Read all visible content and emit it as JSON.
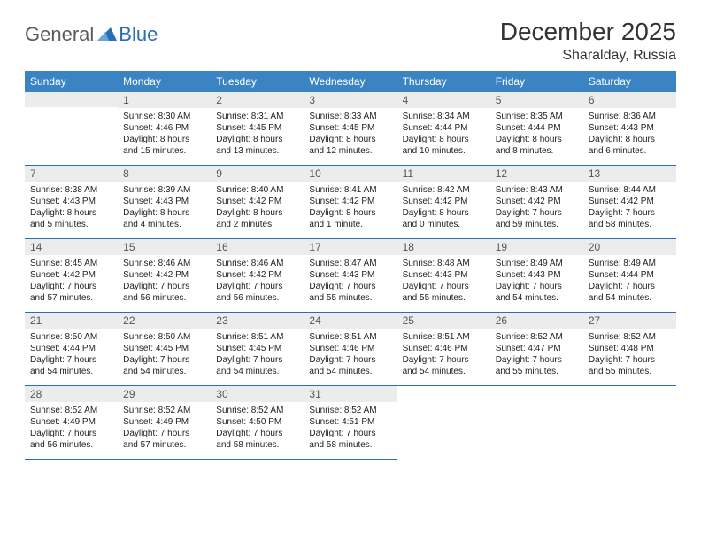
{
  "brand": {
    "part1": "General",
    "part2": "Blue"
  },
  "title": "December 2025",
  "location": "Sharalday, Russia",
  "colors": {
    "header_bg": "#3b84c4",
    "header_text": "#ffffff",
    "daynum_bg": "#ececec",
    "rule": "#2a6db8",
    "logo_gray": "#5a5a5a",
    "logo_blue": "#2a6db8"
  },
  "day_headers": [
    "Sunday",
    "Monday",
    "Tuesday",
    "Wednesday",
    "Thursday",
    "Friday",
    "Saturday"
  ],
  "weeks": [
    [
      {
        "num": "",
        "lines": []
      },
      {
        "num": "1",
        "lines": [
          "Sunrise: 8:30 AM",
          "Sunset: 4:46 PM",
          "Daylight: 8 hours",
          "and 15 minutes."
        ]
      },
      {
        "num": "2",
        "lines": [
          "Sunrise: 8:31 AM",
          "Sunset: 4:45 PM",
          "Daylight: 8 hours",
          "and 13 minutes."
        ]
      },
      {
        "num": "3",
        "lines": [
          "Sunrise: 8:33 AM",
          "Sunset: 4:45 PM",
          "Daylight: 8 hours",
          "and 12 minutes."
        ]
      },
      {
        "num": "4",
        "lines": [
          "Sunrise: 8:34 AM",
          "Sunset: 4:44 PM",
          "Daylight: 8 hours",
          "and 10 minutes."
        ]
      },
      {
        "num": "5",
        "lines": [
          "Sunrise: 8:35 AM",
          "Sunset: 4:44 PM",
          "Daylight: 8 hours",
          "and 8 minutes."
        ]
      },
      {
        "num": "6",
        "lines": [
          "Sunrise: 8:36 AM",
          "Sunset: 4:43 PM",
          "Daylight: 8 hours",
          "and 6 minutes."
        ]
      }
    ],
    [
      {
        "num": "7",
        "lines": [
          "Sunrise: 8:38 AM",
          "Sunset: 4:43 PM",
          "Daylight: 8 hours",
          "and 5 minutes."
        ]
      },
      {
        "num": "8",
        "lines": [
          "Sunrise: 8:39 AM",
          "Sunset: 4:43 PM",
          "Daylight: 8 hours",
          "and 4 minutes."
        ]
      },
      {
        "num": "9",
        "lines": [
          "Sunrise: 8:40 AM",
          "Sunset: 4:42 PM",
          "Daylight: 8 hours",
          "and 2 minutes."
        ]
      },
      {
        "num": "10",
        "lines": [
          "Sunrise: 8:41 AM",
          "Sunset: 4:42 PM",
          "Daylight: 8 hours",
          "and 1 minute."
        ]
      },
      {
        "num": "11",
        "lines": [
          "Sunrise: 8:42 AM",
          "Sunset: 4:42 PM",
          "Daylight: 8 hours",
          "and 0 minutes."
        ]
      },
      {
        "num": "12",
        "lines": [
          "Sunrise: 8:43 AM",
          "Sunset: 4:42 PM",
          "Daylight: 7 hours",
          "and 59 minutes."
        ]
      },
      {
        "num": "13",
        "lines": [
          "Sunrise: 8:44 AM",
          "Sunset: 4:42 PM",
          "Daylight: 7 hours",
          "and 58 minutes."
        ]
      }
    ],
    [
      {
        "num": "14",
        "lines": [
          "Sunrise: 8:45 AM",
          "Sunset: 4:42 PM",
          "Daylight: 7 hours",
          "and 57 minutes."
        ]
      },
      {
        "num": "15",
        "lines": [
          "Sunrise: 8:46 AM",
          "Sunset: 4:42 PM",
          "Daylight: 7 hours",
          "and 56 minutes."
        ]
      },
      {
        "num": "16",
        "lines": [
          "Sunrise: 8:46 AM",
          "Sunset: 4:42 PM",
          "Daylight: 7 hours",
          "and 56 minutes."
        ]
      },
      {
        "num": "17",
        "lines": [
          "Sunrise: 8:47 AM",
          "Sunset: 4:43 PM",
          "Daylight: 7 hours",
          "and 55 minutes."
        ]
      },
      {
        "num": "18",
        "lines": [
          "Sunrise: 8:48 AM",
          "Sunset: 4:43 PM",
          "Daylight: 7 hours",
          "and 55 minutes."
        ]
      },
      {
        "num": "19",
        "lines": [
          "Sunrise: 8:49 AM",
          "Sunset: 4:43 PM",
          "Daylight: 7 hours",
          "and 54 minutes."
        ]
      },
      {
        "num": "20",
        "lines": [
          "Sunrise: 8:49 AM",
          "Sunset: 4:44 PM",
          "Daylight: 7 hours",
          "and 54 minutes."
        ]
      }
    ],
    [
      {
        "num": "21",
        "lines": [
          "Sunrise: 8:50 AM",
          "Sunset: 4:44 PM",
          "Daylight: 7 hours",
          "and 54 minutes."
        ]
      },
      {
        "num": "22",
        "lines": [
          "Sunrise: 8:50 AM",
          "Sunset: 4:45 PM",
          "Daylight: 7 hours",
          "and 54 minutes."
        ]
      },
      {
        "num": "23",
        "lines": [
          "Sunrise: 8:51 AM",
          "Sunset: 4:45 PM",
          "Daylight: 7 hours",
          "and 54 minutes."
        ]
      },
      {
        "num": "24",
        "lines": [
          "Sunrise: 8:51 AM",
          "Sunset: 4:46 PM",
          "Daylight: 7 hours",
          "and 54 minutes."
        ]
      },
      {
        "num": "25",
        "lines": [
          "Sunrise: 8:51 AM",
          "Sunset: 4:46 PM",
          "Daylight: 7 hours",
          "and 54 minutes."
        ]
      },
      {
        "num": "26",
        "lines": [
          "Sunrise: 8:52 AM",
          "Sunset: 4:47 PM",
          "Daylight: 7 hours",
          "and 55 minutes."
        ]
      },
      {
        "num": "27",
        "lines": [
          "Sunrise: 8:52 AM",
          "Sunset: 4:48 PM",
          "Daylight: 7 hours",
          "and 55 minutes."
        ]
      }
    ],
    [
      {
        "num": "28",
        "lines": [
          "Sunrise: 8:52 AM",
          "Sunset: 4:49 PM",
          "Daylight: 7 hours",
          "and 56 minutes."
        ]
      },
      {
        "num": "29",
        "lines": [
          "Sunrise: 8:52 AM",
          "Sunset: 4:49 PM",
          "Daylight: 7 hours",
          "and 57 minutes."
        ]
      },
      {
        "num": "30",
        "lines": [
          "Sunrise: 8:52 AM",
          "Sunset: 4:50 PM",
          "Daylight: 7 hours",
          "and 58 minutes."
        ]
      },
      {
        "num": "31",
        "lines": [
          "Sunrise: 8:52 AM",
          "Sunset: 4:51 PM",
          "Daylight: 7 hours",
          "and 58 minutes."
        ]
      },
      {
        "num": "",
        "lines": []
      },
      {
        "num": "",
        "lines": []
      },
      {
        "num": "",
        "lines": []
      }
    ]
  ]
}
